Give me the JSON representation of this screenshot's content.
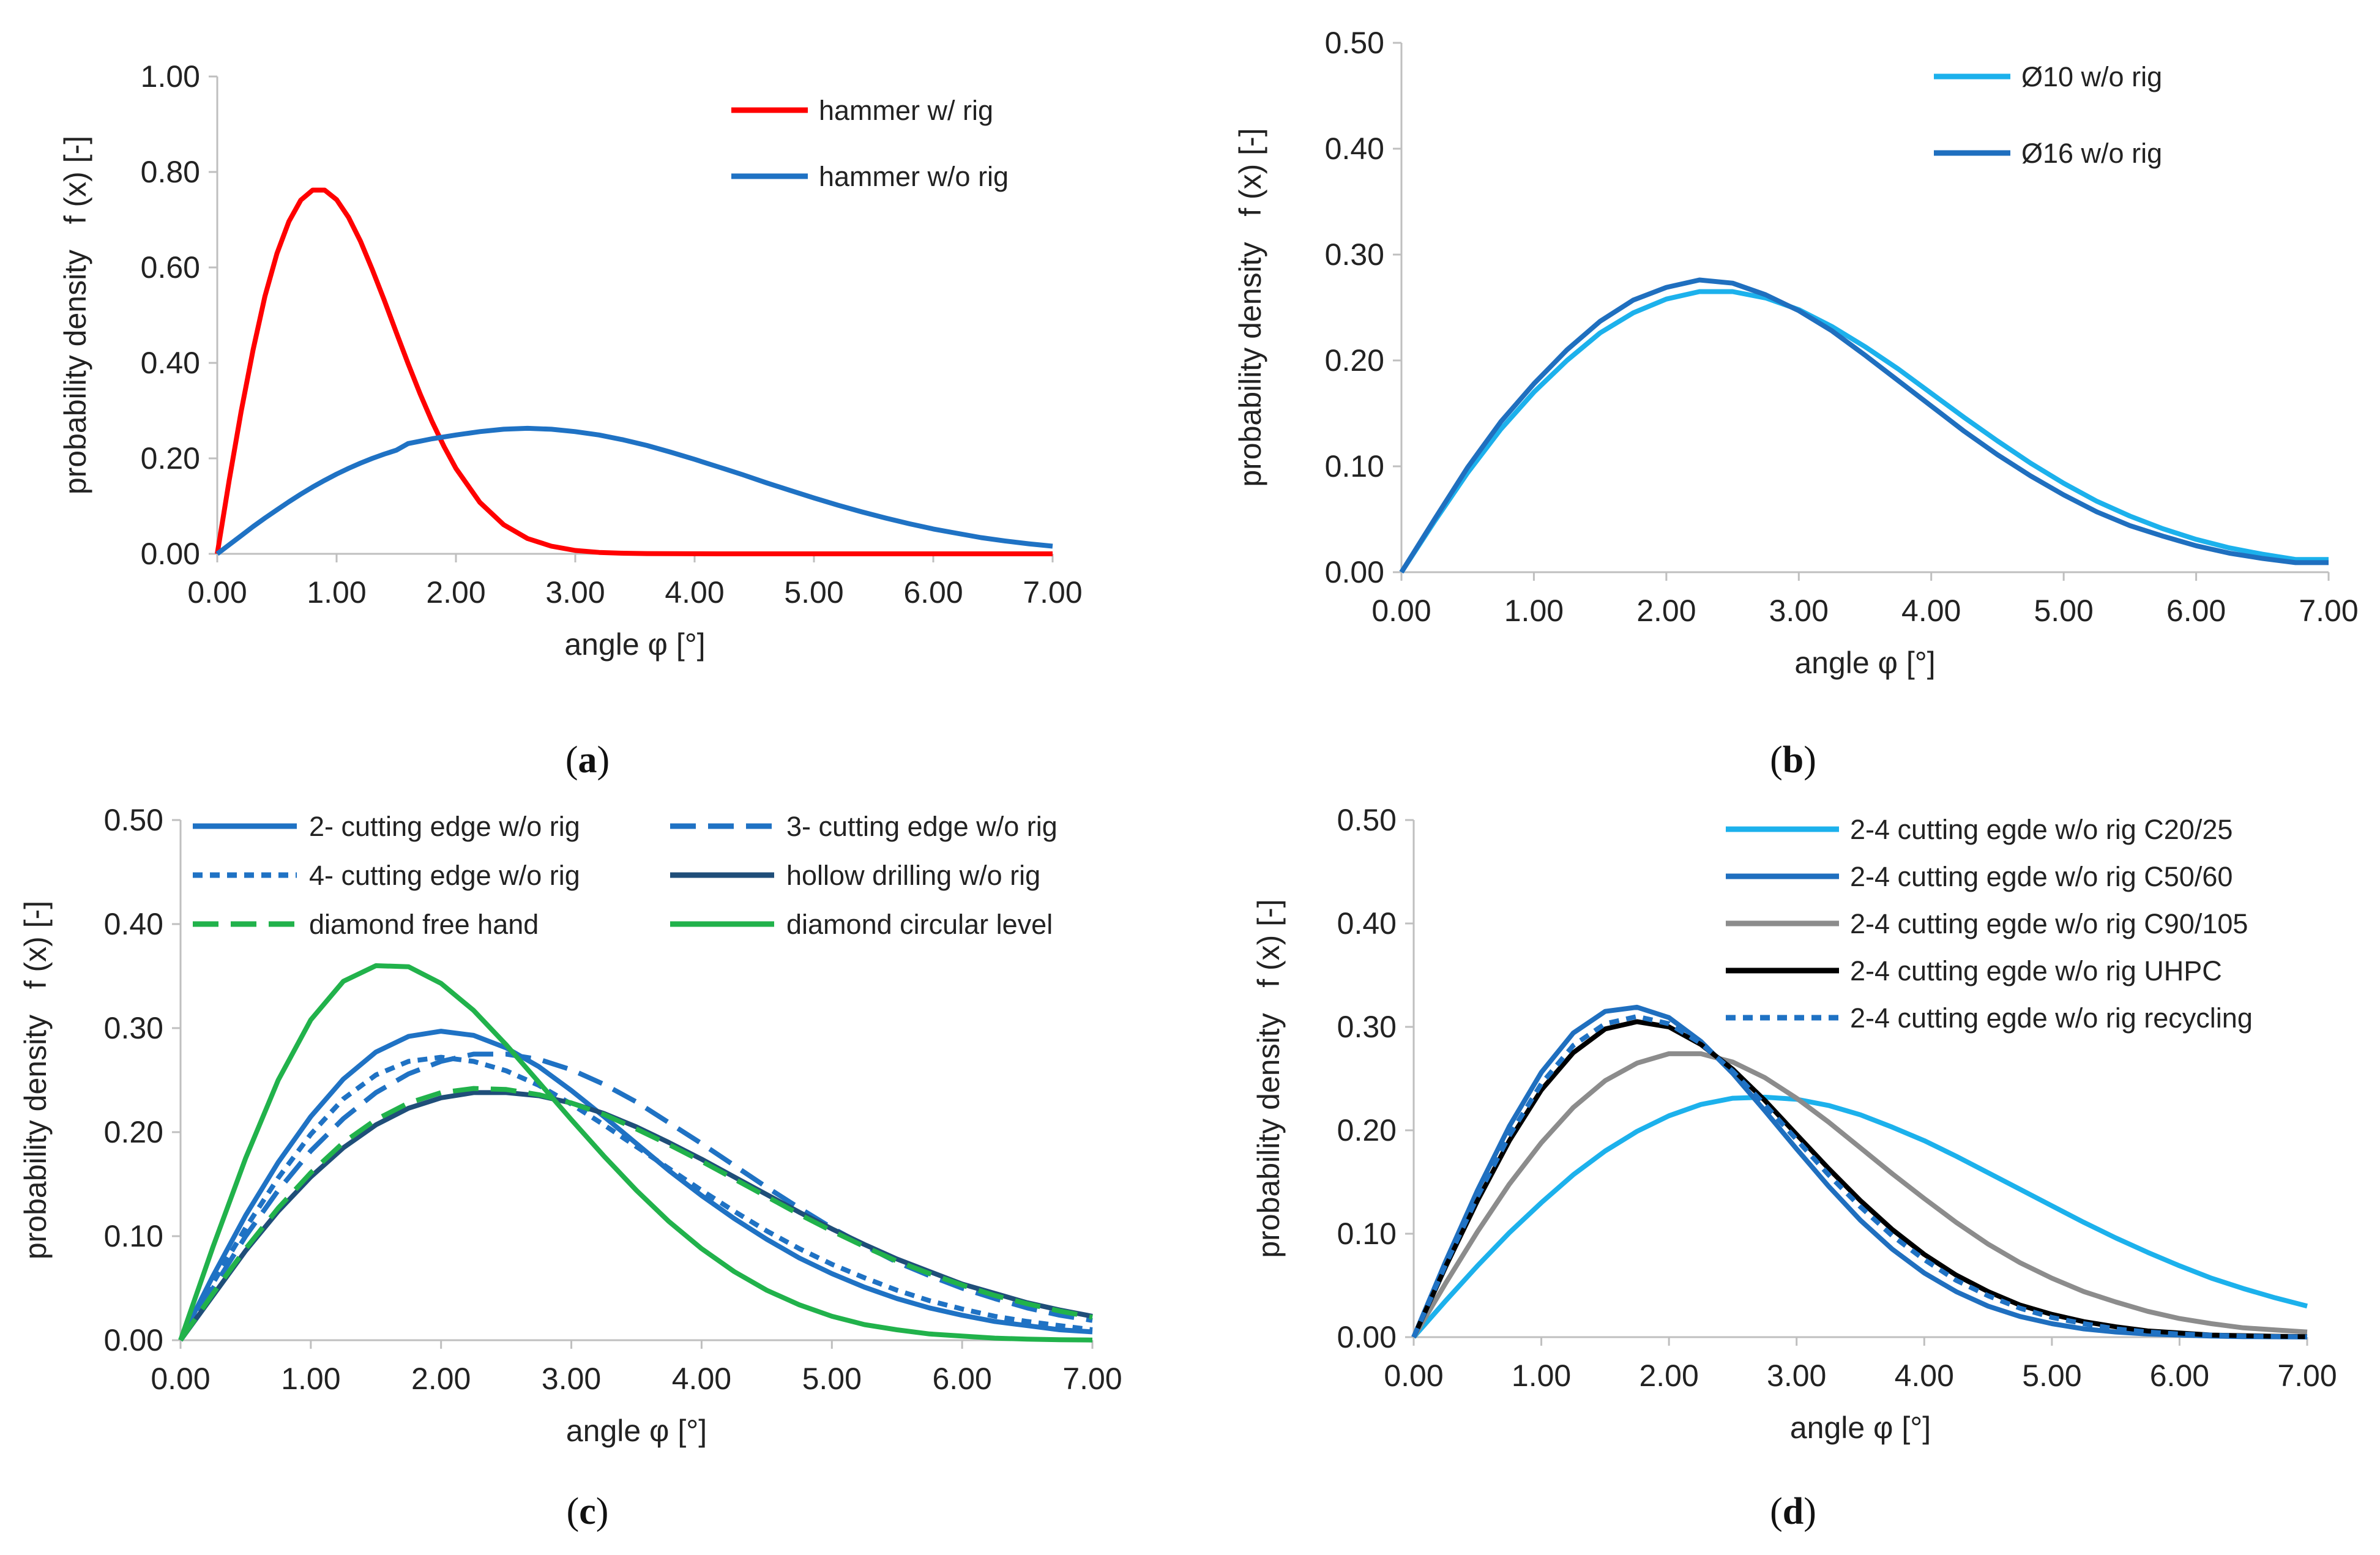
{
  "chart_data": [
    {
      "type": "line",
      "panel": "a",
      "caption": {
        "open": "(",
        "letter": "a",
        "close": ")"
      },
      "xlabel": "angle φ [°]",
      "ylabel": "probability density   f (x) [-]",
      "xlim": [
        0,
        7
      ],
      "ylim": [
        0,
        1.0
      ],
      "x_ticks": [
        "0.00",
        "1.00",
        "2.00",
        "3.00",
        "4.00",
        "5.00",
        "6.00",
        "7.00"
      ],
      "y_ticks": [
        "0.00",
        "0.20",
        "0.40",
        "0.60",
        "0.80",
        "1.00"
      ],
      "x": [
        0,
        0.1,
        0.2,
        0.3,
        0.4,
        0.5,
        0.6,
        0.7,
        0.8,
        0.9,
        1.0,
        1.1,
        1.2,
        1.3,
        1.4,
        1.5,
        1.6,
        1.7,
        1.8,
        1.9,
        2.0,
        2.2,
        2.4,
        2.6,
        2.8,
        3.0,
        3.2,
        3.4,
        3.6,
        3.8,
        4.0,
        4.2,
        4.4,
        4.6,
        4.8,
        5.0,
        5.2,
        5.4,
        5.6,
        5.8,
        6.0,
        6.2,
        6.4,
        6.6,
        6.8,
        7.0
      ],
      "series": [
        {
          "name": "hammer w/ rig",
          "color": "#ff0000",
          "dash": "solid",
          "values": [
            0,
            0.154,
            0.298,
            0.427,
            0.54,
            0.629,
            0.696,
            0.741,
            0.762,
            0.762,
            0.742,
            0.705,
            0.655,
            0.595,
            0.531,
            0.464,
            0.398,
            0.335,
            0.277,
            0.225,
            0.179,
            0.108,
            0.061,
            0.032,
            0.016,
            0.007,
            0.003,
            0.0013,
            0.0005,
            0.0002,
            0.0001,
            0,
            0,
            0,
            0,
            0,
            0,
            0,
            0,
            0,
            0,
            0,
            0,
            0,
            0,
            0
          ]
        },
        {
          "name": "hammer w/o rig",
          "color": "#1f72c4",
          "dash": "solid",
          "values": [
            0,
            0.019,
            0.038,
            0.057,
            0.075,
            0.092,
            0.109,
            0.125,
            0.14,
            0.154,
            0.167,
            0.179,
            0.19,
            0.2,
            0.209,
            0.217,
            0.231,
            0.236,
            0.241,
            0.245,
            0.249,
            0.256,
            0.261,
            0.263,
            0.261,
            0.256,
            0.249,
            0.239,
            0.227,
            0.213,
            0.198,
            0.182,
            0.166,
            0.149,
            0.133,
            0.117,
            0.102,
            0.088,
            0.075,
            0.063,
            0.052,
            0.043,
            0.034,
            0.027,
            0.021,
            0.016
          ]
        }
      ],
      "legend": "top-right"
    },
    {
      "type": "line",
      "panel": "b",
      "caption": {
        "open": "(",
        "letter": "b",
        "close": ")"
      },
      "xlabel": "angle φ [°]",
      "ylabel": "probability density   f (x) [-]",
      "xlim": [
        0,
        7
      ],
      "ylim": [
        0,
        0.5
      ],
      "x_ticks": [
        "0.00",
        "1.00",
        "2.00",
        "3.00",
        "4.00",
        "5.00",
        "6.00",
        "7.00"
      ],
      "y_ticks": [
        "0.00",
        "0.10",
        "0.20",
        "0.30",
        "0.40",
        "0.50"
      ],
      "x": [
        0,
        0.25,
        0.5,
        0.75,
        1.0,
        1.25,
        1.5,
        1.75,
        2.0,
        2.25,
        2.5,
        2.75,
        3.0,
        3.25,
        3.5,
        3.75,
        4.0,
        4.25,
        4.5,
        4.75,
        5.0,
        5.25,
        5.5,
        5.75,
        6.0,
        6.25,
        6.5,
        6.75,
        7.0
      ],
      "series": [
        {
          "name": "Ø10 w/o rig",
          "color": "#1cb1ec",
          "dash": "solid",
          "values": [
            0,
            0.048,
            0.094,
            0.135,
            0.17,
            0.2,
            0.226,
            0.245,
            0.258,
            0.265,
            0.265,
            0.259,
            0.248,
            0.232,
            0.213,
            0.192,
            0.169,
            0.146,
            0.124,
            0.103,
            0.084,
            0.067,
            0.053,
            0.041,
            0.031,
            0.023,
            0.017,
            0.012,
            0.012
          ]
        },
        {
          "name": "Ø16 w/o rig",
          "color": "#1f6fbf",
          "dash": "solid",
          "values": [
            0,
            0.05,
            0.099,
            0.142,
            0.178,
            0.21,
            0.237,
            0.257,
            0.269,
            0.276,
            0.273,
            0.262,
            0.247,
            0.228,
            0.205,
            0.181,
            0.157,
            0.133,
            0.111,
            0.091,
            0.073,
            0.057,
            0.044,
            0.034,
            0.025,
            0.018,
            0.013,
            0.009,
            0.009
          ]
        }
      ],
      "legend": "top-right"
    },
    {
      "type": "line",
      "panel": "c",
      "caption": {
        "open": "(",
        "letter": "c",
        "close": ")"
      },
      "xlabel": "angle φ [°]",
      "ylabel": "probability density   f (x) [-]",
      "xlim": [
        0,
        7
      ],
      "ylim": [
        0,
        0.5
      ],
      "x_ticks": [
        "0.00",
        "1.00",
        "2.00",
        "3.00",
        "4.00",
        "5.00",
        "6.00",
        "7.00"
      ],
      "y_ticks": [
        "0.00",
        "0.10",
        "0.20",
        "0.30",
        "0.40",
        "0.50"
      ],
      "x": [
        0,
        0.25,
        0.5,
        0.75,
        1.0,
        1.25,
        1.5,
        1.75,
        2.0,
        2.25,
        2.5,
        2.75,
        3.0,
        3.25,
        3.5,
        3.75,
        4.0,
        4.25,
        4.5,
        4.75,
        5.0,
        5.25,
        5.5,
        5.75,
        6.0,
        6.25,
        6.5,
        6.75,
        7.0
      ],
      "series": [
        {
          "name": "2- cutting edge w/o rig",
          "color": "#1f72c4",
          "dash": "solid",
          "values": [
            0,
            0.062,
            0.12,
            0.171,
            0.215,
            0.251,
            0.277,
            0.292,
            0.297,
            0.293,
            0.281,
            0.263,
            0.24,
            0.215,
            0.189,
            0.163,
            0.139,
            0.117,
            0.097,
            0.079,
            0.064,
            0.051,
            0.04,
            0.031,
            0.024,
            0.018,
            0.014,
            0.01,
            0.008
          ]
        },
        {
          "name": "3- cutting edge w/o rig",
          "color": "#1f72c4",
          "dash": "dashed",
          "values": [
            0,
            0.05,
            0.1,
            0.144,
            0.182,
            0.213,
            0.238,
            0.256,
            0.268,
            0.275,
            0.275,
            0.27,
            0.26,
            0.246,
            0.229,
            0.209,
            0.189,
            0.168,
            0.147,
            0.127,
            0.108,
            0.091,
            0.075,
            0.062,
            0.05,
            0.04,
            0.031,
            0.024,
            0.019
          ]
        },
        {
          "name": "4- cutting edge w/o rig",
          "color": "#1f72c4",
          "dash": "dotted",
          "values": [
            0,
            0.055,
            0.108,
            0.156,
            0.198,
            0.232,
            0.255,
            0.268,
            0.272,
            0.268,
            0.259,
            0.245,
            0.227,
            0.207,
            0.186,
            0.165,
            0.144,
            0.124,
            0.105,
            0.088,
            0.073,
            0.06,
            0.048,
            0.038,
            0.03,
            0.023,
            0.018,
            0.014,
            0.01
          ]
        },
        {
          "name": "hollow drilling w/o rig",
          "color": "#1f4e79",
          "dash": "solid",
          "values": [
            0,
            0.043,
            0.086,
            0.124,
            0.157,
            0.185,
            0.207,
            0.223,
            0.233,
            0.238,
            0.238,
            0.235,
            0.228,
            0.218,
            0.205,
            0.19,
            0.174,
            0.157,
            0.14,
            0.123,
            0.107,
            0.092,
            0.078,
            0.066,
            0.054,
            0.045,
            0.036,
            0.029,
            0.023
          ]
        },
        {
          "name": "diamond free hand",
          "color": "#21b24b",
          "dash": "dashed",
          "values": [
            0,
            0.045,
            0.088,
            0.127,
            0.161,
            0.19,
            0.212,
            0.228,
            0.238,
            0.242,
            0.241,
            0.236,
            0.228,
            0.217,
            0.203,
            0.188,
            0.172,
            0.155,
            0.138,
            0.121,
            0.105,
            0.09,
            0.076,
            0.064,
            0.053,
            0.043,
            0.035,
            0.028,
            0.022
          ]
        },
        {
          "name": "diamond circular level",
          "color": "#21b24b",
          "dash": "solid",
          "values": [
            0,
            0.09,
            0.175,
            0.25,
            0.308,
            0.345,
            0.36,
            0.359,
            0.343,
            0.317,
            0.284,
            0.248,
            0.212,
            0.177,
            0.144,
            0.114,
            0.088,
            0.066,
            0.048,
            0.034,
            0.023,
            0.015,
            0.01,
            0.006,
            0.004,
            0.002,
            0.001,
            0.0005,
            0.0002
          ]
        }
      ],
      "legend": "top (two columns)"
    },
    {
      "type": "line",
      "panel": "d",
      "caption": {
        "open": "(",
        "letter": "d",
        "close": ")"
      },
      "xlabel": "angle φ [°]",
      "ylabel": "probability density   f (x) [-]",
      "xlim": [
        0,
        7
      ],
      "ylim": [
        0,
        0.5
      ],
      "x_ticks": [
        "0.00",
        "1.00",
        "2.00",
        "3.00",
        "4.00",
        "5.00",
        "6.00",
        "7.00"
      ],
      "y_ticks": [
        "0.00",
        "0.10",
        "0.20",
        "0.30",
        "0.40",
        "0.50"
      ],
      "x": [
        0,
        0.25,
        0.5,
        0.75,
        1.0,
        1.25,
        1.5,
        1.75,
        2.0,
        2.25,
        2.5,
        2.75,
        3.0,
        3.25,
        3.5,
        3.75,
        4.0,
        4.25,
        4.5,
        4.75,
        5.0,
        5.25,
        5.5,
        5.75,
        6.0,
        6.25,
        6.5,
        6.75,
        7.0
      ],
      "series": [
        {
          "name": "2-4 cutting egde w/o rig C20/25",
          "color": "#1cb1ec",
          "dash": "solid",
          "values": [
            0,
            0.035,
            0.069,
            0.101,
            0.13,
            0.157,
            0.18,
            0.199,
            0.214,
            0.225,
            0.231,
            0.232,
            0.23,
            0.224,
            0.215,
            0.203,
            0.19,
            0.175,
            0.159,
            0.143,
            0.127,
            0.111,
            0.096,
            0.082,
            0.069,
            0.057,
            0.047,
            0.038,
            0.03
          ]
        },
        {
          "name": "2-4 cutting egde w/o rig C50/60",
          "color": "#1f6fbf",
          "dash": "solid",
          "values": [
            0,
            0.073,
            0.142,
            0.204,
            0.256,
            0.294,
            0.315,
            0.319,
            0.309,
            0.286,
            0.255,
            0.219,
            0.182,
            0.146,
            0.113,
            0.085,
            0.062,
            0.044,
            0.03,
            0.02,
            0.013,
            0.008,
            0.005,
            0.003,
            0.002,
            0.001,
            0.0005,
            0.0003,
            0.0001
          ]
        },
        {
          "name": "2-4 cutting egde w/o rig C90/105",
          "color": "#8c8c8c",
          "dash": "solid",
          "values": [
            0,
            0.052,
            0.102,
            0.148,
            0.188,
            0.222,
            0.248,
            0.265,
            0.274,
            0.274,
            0.266,
            0.251,
            0.231,
            0.208,
            0.183,
            0.158,
            0.134,
            0.111,
            0.09,
            0.072,
            0.057,
            0.044,
            0.034,
            0.025,
            0.018,
            0.013,
            0.009,
            0.007,
            0.005
          ]
        },
        {
          "name": "2-4 cutting egde w/o rig UHPC",
          "color": "#000000",
          "dash": "solid",
          "values": [
            0,
            0.068,
            0.132,
            0.19,
            0.239,
            0.275,
            0.298,
            0.305,
            0.3,
            0.283,
            0.259,
            0.229,
            0.196,
            0.163,
            0.132,
            0.104,
            0.08,
            0.06,
            0.044,
            0.031,
            0.022,
            0.015,
            0.01,
            0.006,
            0.004,
            0.002,
            0.0014,
            0.0008,
            0.0004
          ]
        },
        {
          "name": "2-4 cutting egde w/o rig recycling",
          "color": "#1f72c4",
          "dash": "dotted",
          "values": [
            0,
            0.07,
            0.136,
            0.195,
            0.245,
            0.282,
            0.303,
            0.31,
            0.303,
            0.284,
            0.257,
            0.225,
            0.191,
            0.157,
            0.126,
            0.098,
            0.075,
            0.055,
            0.04,
            0.028,
            0.019,
            0.013,
            0.008,
            0.005,
            0.003,
            0.002,
            0.001,
            0.0006,
            0.0003
          ]
        }
      ],
      "legend": "top-right"
    }
  ]
}
